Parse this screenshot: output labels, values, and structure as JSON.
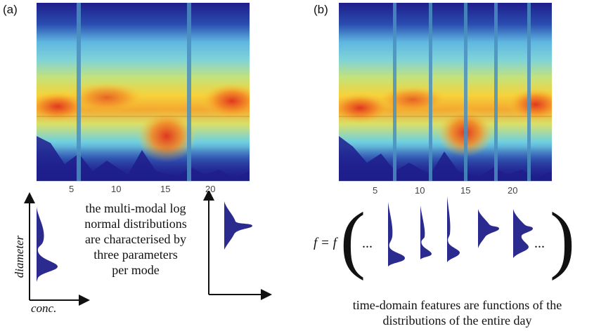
{
  "panel_a": {
    "label": "(a)",
    "x_ticks": [
      "5",
      "10",
      "15",
      "20"
    ],
    "caption_lines": [
      "the multi-modal log",
      "normal distributions",
      "are characterised by",
      "three parameters",
      "per mode"
    ],
    "y_axis_label": "diameter",
    "x_axis_label": "conc."
  },
  "panel_b": {
    "label": "(b)",
    "x_ticks": [
      "5",
      "10",
      "15",
      "20"
    ],
    "formula_left": "f = f",
    "ellipsis": "...",
    "caption_lines": [
      "time-domain features are functions of the",
      "distributions of the entire day"
    ]
  },
  "colors": {
    "dark_blue": "#1f1d8c",
    "light_blue": "#5fb6e0",
    "cyan": "#5fd0e8",
    "green": "#a8d86a",
    "yellow": "#f6d23a",
    "orange": "#f38a26",
    "red": "#e0381e",
    "curve_fill": "#2b2a8f"
  }
}
